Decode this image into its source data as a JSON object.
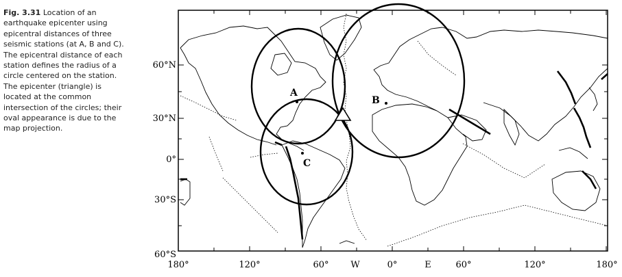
{
  "caption": {
    "label": "Fig. 3.31",
    "text": "Location of an earthquake epicenter using epicentral distances of three seismic stations (at A, B and C). The epicentral distance of each station defines the radius of a circle centered on the station. The epicenter (triangle) is located at the common intersection of the circles; their oval appearance is due to the map projection."
  },
  "map": {
    "lat_labels": [
      "60°N",
      "30°N",
      "0°",
      "30°S",
      "60°S"
    ],
    "lon_labels": [
      "180°",
      "120°",
      "60°",
      "W",
      "0°",
      "E",
      "60°",
      "120°",
      "180°"
    ],
    "stations": [
      {
        "label": "A"
      },
      {
        "label": "B"
      },
      {
        "label": "C"
      }
    ]
  }
}
